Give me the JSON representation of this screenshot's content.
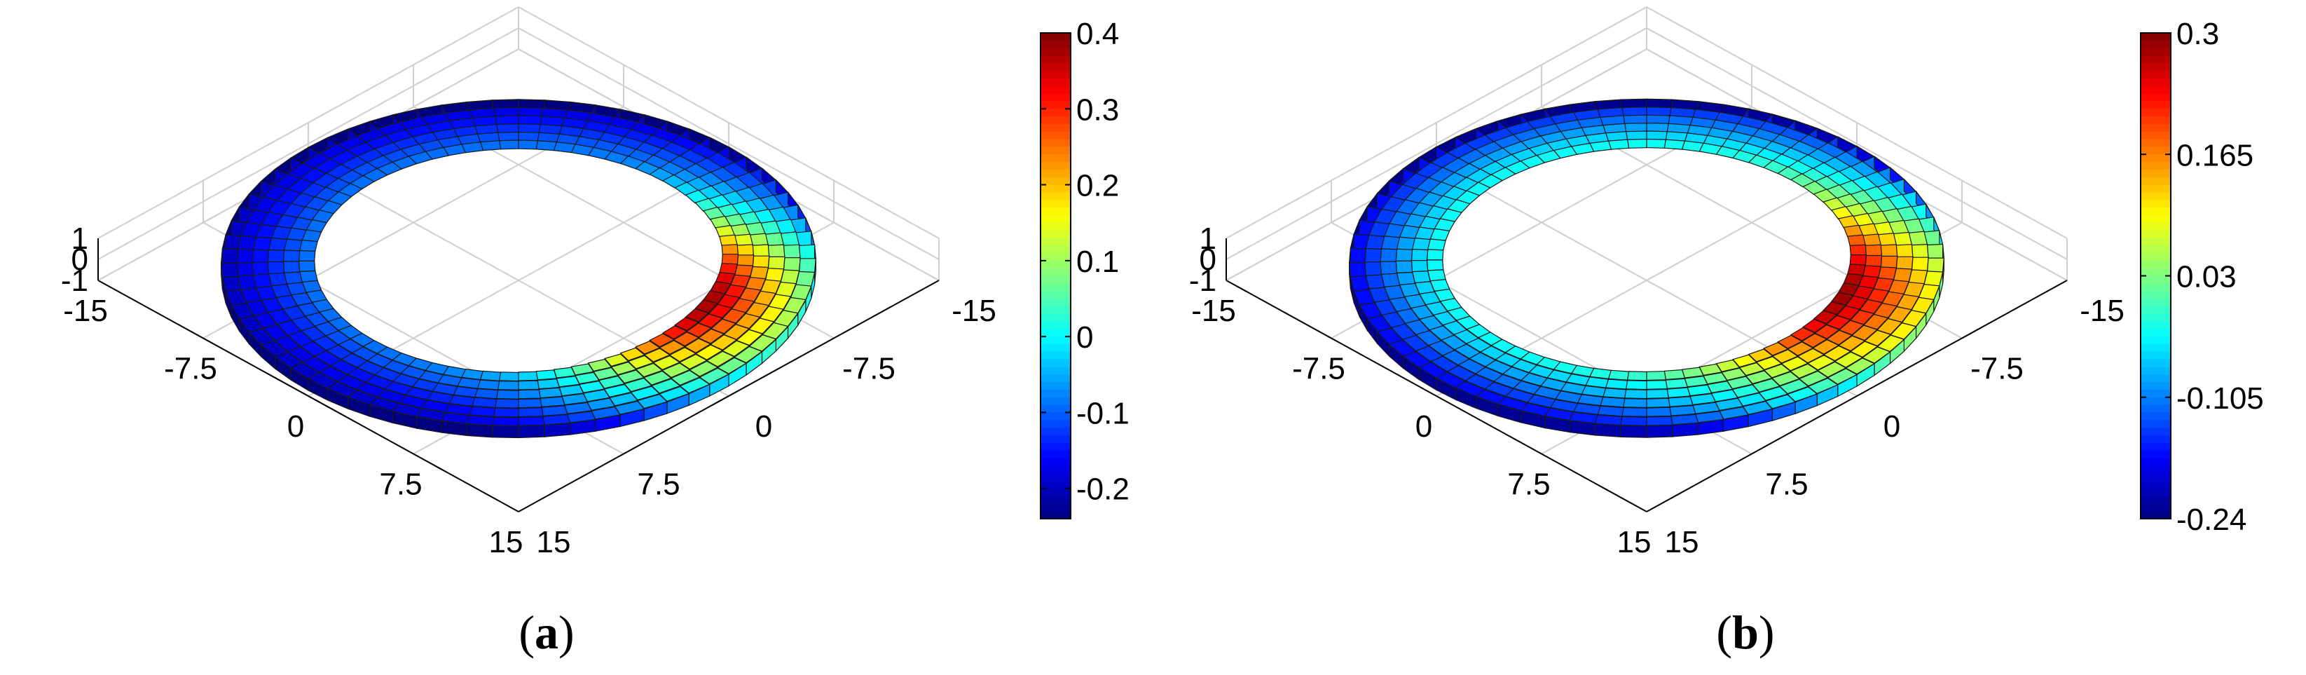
{
  "chart_data": [
    {
      "type": "surface3d",
      "panel_label": "a",
      "x_ticks": [
        "-15",
        "-7.5",
        "0",
        "7.5",
        "15"
      ],
      "y_ticks": [
        "15",
        "7.5",
        "0",
        "-7.5",
        "-15"
      ],
      "z_ticks": [
        "1",
        "0",
        "-1"
      ],
      "xlim": [
        -15,
        15
      ],
      "ylim": [
        -15,
        15
      ],
      "zlim": [
        -1,
        1
      ],
      "grid": true,
      "ring": {
        "inner_radius": 10.3,
        "outer_radius": 15,
        "radial_cells": 6,
        "angular_cells": 72
      },
      "colorbar": {
        "colormap": "jet",
        "range": [
          -0.24,
          0.4
        ],
        "ticks": [
          {
            "value": 0.4,
            "label": "0.4"
          },
          {
            "value": 0.3,
            "label": "0.3"
          },
          {
            "value": 0.2,
            "label": "0.2"
          },
          {
            "value": 0.1,
            "label": "0.1"
          },
          {
            "value": 0,
            "label": "0"
          },
          {
            "value": -0.1,
            "label": "-0.1"
          },
          {
            "value": -0.2,
            "label": "-0.2"
          }
        ]
      },
      "field": {
        "peak_azimuth_deg": 20,
        "peak_value": 0.4,
        "base_value": -0.08,
        "min_value": -0.22
      }
    },
    {
      "type": "surface3d",
      "panel_label": "b",
      "x_ticks": [
        "-15",
        "-7.5",
        "0",
        "7.5",
        "15"
      ],
      "y_ticks": [
        "15",
        "7.5",
        "0",
        "-7.5",
        "-15"
      ],
      "z_ticks": [
        "1",
        "0",
        "-1"
      ],
      "xlim": [
        -15,
        15
      ],
      "ylim": [
        -15,
        15
      ],
      "zlim": [
        -1,
        1
      ],
      "grid": true,
      "ring": {
        "inner_radius": 10.3,
        "outer_radius": 15,
        "radial_cells": 6,
        "angular_cells": 72
      },
      "colorbar": {
        "colormap": "jet",
        "range": [
          -0.24,
          0.3
        ],
        "ticks": [
          {
            "value": 0.3,
            "label": "0.3"
          },
          {
            "value": 0.165,
            "label": "0.165"
          },
          {
            "value": 0.03,
            "label": "0.03"
          },
          {
            "value": -0.105,
            "label": "-0.105"
          },
          {
            "value": -0.24,
            "label": "-0.24"
          }
        ]
      },
      "field": {
        "peak_azimuth_deg": 25,
        "peak_value": 0.3,
        "base_value": -0.02,
        "min_value": -0.2
      }
    }
  ]
}
